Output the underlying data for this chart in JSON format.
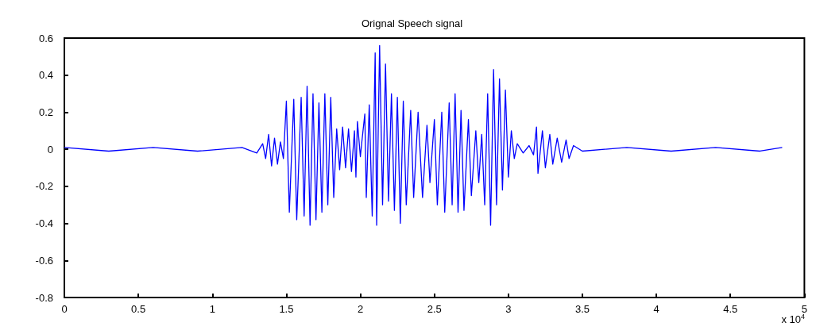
{
  "chart_data": {
    "type": "line",
    "title": "Orignal Speech signal",
    "annotations": [
      "x 10$^{4}$"
    ],
    "xlim": [
      0,
      5
    ],
    "xticks": [
      0,
      0.5,
      1,
      1.5,
      2,
      2.5,
      3,
      3.5,
      4,
      4.5,
      5
    ],
    "ylim": [
      -0.8,
      0.6
    ],
    "yticks": [
      -0.8,
      -0.6,
      -0.4,
      -0.2,
      0,
      0.2,
      0.4,
      0.6
    ],
    "grid": false,
    "marker": "none",
    "line_style": "solid",
    "series": [
      {
        "color": "#0000ff",
        "x": [
          0,
          0.3,
          0.6,
          0.9,
          1.2,
          1.3,
          1.34,
          1.36,
          1.38,
          1.4,
          1.42,
          1.44,
          1.46,
          1.48,
          1.5,
          1.52,
          1.55,
          1.57,
          1.6,
          1.62,
          1.64,
          1.66,
          1.68,
          1.7,
          1.72,
          1.74,
          1.76,
          1.78,
          1.8,
          1.82,
          1.84,
          1.86,
          1.88,
          1.9,
          1.92,
          1.94,
          1.96,
          1.97,
          1.98,
          2.0,
          2.01,
          2.03,
          2.04,
          2.06,
          2.08,
          2.1,
          2.11,
          2.13,
          2.15,
          2.17,
          2.19,
          2.21,
          2.23,
          2.25,
          2.27,
          2.29,
          2.31,
          2.34,
          2.36,
          2.39,
          2.42,
          2.45,
          2.47,
          2.5,
          2.52,
          2.55,
          2.57,
          2.6,
          2.62,
          2.64,
          2.66,
          2.68,
          2.7,
          2.73,
          2.75,
          2.78,
          2.8,
          2.82,
          2.84,
          2.86,
          2.88,
          2.9,
          2.92,
          2.94,
          2.96,
          2.98,
          3.0,
          3.02,
          3.04,
          3.06,
          3.1,
          3.14,
          3.17,
          3.19,
          3.2,
          3.23,
          3.25,
          3.28,
          3.3,
          3.33,
          3.36,
          3.39,
          3.41,
          3.44,
          3.5,
          3.8,
          4.1,
          4.4,
          4.7,
          4.85
        ],
        "values": [
          0.01,
          -0.01,
          0.01,
          -0.01,
          0.01,
          -0.02,
          0.03,
          -0.05,
          0.08,
          -0.09,
          0.06,
          -0.08,
          0.04,
          -0.05,
          0.26,
          -0.34,
          0.27,
          -0.38,
          0.28,
          -0.36,
          0.34,
          -0.41,
          0.3,
          -0.38,
          0.25,
          -0.34,
          0.3,
          -0.3,
          0.28,
          -0.26,
          0.11,
          -0.11,
          0.12,
          -0.1,
          0.11,
          -0.12,
          0.1,
          -0.15,
          0.15,
          -0.04,
          0.04,
          0.19,
          -0.26,
          0.24,
          -0.36,
          0.52,
          -0.41,
          0.56,
          -0.3,
          0.46,
          -0.28,
          0.3,
          -0.33,
          0.28,
          -0.4,
          0.26,
          -0.3,
          0.21,
          -0.26,
          0.2,
          -0.26,
          0.13,
          -0.18,
          0.16,
          -0.3,
          0.2,
          -0.34,
          0.25,
          -0.3,
          0.3,
          -0.34,
          0.21,
          -0.33,
          0.16,
          -0.25,
          0.1,
          -0.18,
          0.08,
          -0.3,
          0.3,
          -0.41,
          0.43,
          -0.3,
          0.38,
          -0.22,
          0.32,
          -0.15,
          0.1,
          -0.05,
          0.03,
          -0.02,
          0.02,
          -0.03,
          0.12,
          -0.13,
          0.1,
          -0.1,
          0.08,
          -0.08,
          0.06,
          -0.07,
          0.05,
          -0.05,
          0.02,
          -0.01,
          0.01,
          -0.01,
          0.01,
          -0.01,
          0.01
        ]
      }
    ]
  }
}
